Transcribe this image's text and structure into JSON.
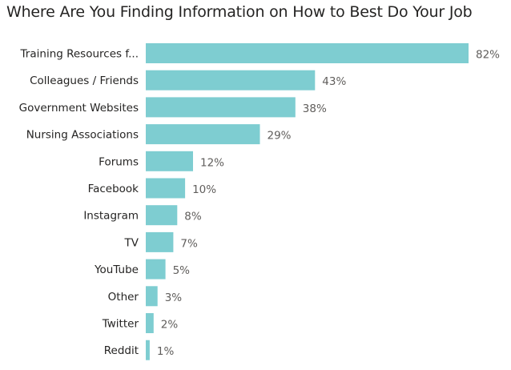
{
  "chart_data": {
    "type": "bar",
    "orientation": "horizontal",
    "title": "Where Are You Finding Information on How to Best Do Your Job",
    "categories": [
      "Training Resources f...",
      "Colleagues / Friends",
      "Government Websites",
      "Nursing Associations",
      "Forums",
      "Facebook",
      "Instagram",
      "TV",
      "YouTube",
      "Other",
      "Twitter",
      "Reddit"
    ],
    "values": [
      82,
      43,
      38,
      29,
      12,
      10,
      8,
      7,
      5,
      3,
      2,
      1
    ],
    "value_labels": [
      "82%",
      "43%",
      "38%",
      "29%",
      "12%",
      "10%",
      "8%",
      "7%",
      "5%",
      "3%",
      "2%",
      "1%"
    ],
    "xlabel": "",
    "ylabel": "",
    "xlim": [
      0,
      82
    ],
    "grid": false,
    "legend": "none",
    "bar_color": "#7ECDD1"
  }
}
